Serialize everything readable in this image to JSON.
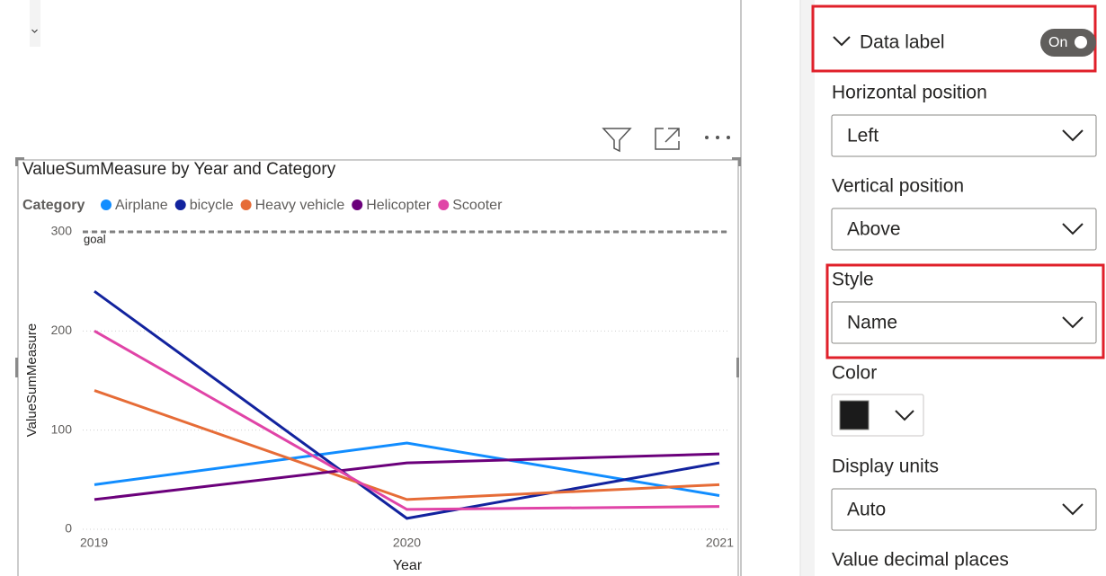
{
  "chart_data": {
    "type": "line",
    "title": "ValueSumMeasure by Year and Category",
    "legend_title": "Category",
    "x_label": "Year",
    "y_label": "ValueSumMeasure",
    "categories": [
      "2019",
      "2020",
      "2021"
    ],
    "series": [
      {
        "name": "Airplane",
        "color": "#118DFF",
        "values": [
          45,
          87,
          34
        ]
      },
      {
        "name": "bicycle",
        "color": "#12239E",
        "values": [
          240,
          11,
          67
        ]
      },
      {
        "name": "Heavy vehicle",
        "color": "#E66C37",
        "values": [
          140,
          30,
          45
        ]
      },
      {
        "name": "Helicopter",
        "color": "#6B007B",
        "values": [
          30,
          67,
          76
        ]
      },
      {
        "name": "Scooter",
        "color": "#E044A7",
        "values": [
          200,
          20,
          23
        ]
      }
    ],
    "goal": {
      "label": "goal",
      "value": 300
    },
    "ylim": [
      0,
      300
    ],
    "yticks": [
      0,
      100,
      200,
      300
    ],
    "grid": true
  },
  "format_pane": {
    "section": "Data label",
    "toggle": "On",
    "fields": [
      {
        "label": "Horizontal position",
        "value": "Left"
      },
      {
        "label": "Vertical position",
        "value": "Above"
      },
      {
        "label": "Style",
        "value": "Name"
      },
      {
        "label": "Color"
      },
      {
        "label": "Display units",
        "value": "Auto"
      },
      {
        "label": "Value decimal places"
      }
    ]
  }
}
